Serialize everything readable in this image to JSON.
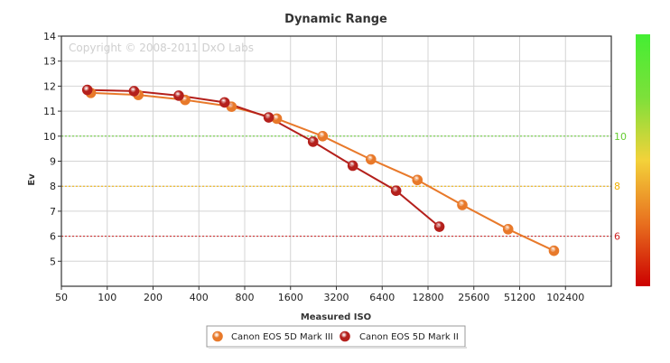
{
  "chart_data": {
    "type": "line",
    "title": "Dynamic Range",
    "xlabel": "Measured ISO",
    "ylabel": "Ev",
    "x_scale": "log2",
    "xlim": [
      50,
      204800
    ],
    "ylim": [
      4,
      14
    ],
    "x_ticks": [
      50,
      100,
      200,
      400,
      800,
      1600,
      3200,
      6400,
      12800,
      25600,
      51200,
      102400
    ],
    "y_ticks": [
      5,
      6,
      7,
      8,
      9,
      10,
      11,
      12,
      13,
      14
    ],
    "grid": true,
    "legend_position": "bottom",
    "watermark": "Copyright © 2008-2011 DxO Labs",
    "reference_lines": [
      {
        "value": 10,
        "label": "10",
        "color": "#66cc33"
      },
      {
        "value": 8,
        "label": "8",
        "color": "#f0b000"
      },
      {
        "value": 6,
        "label": "6",
        "color": "#cc2222"
      }
    ],
    "series": [
      {
        "name": "Canon EOS 5D Mark III",
        "color": "#e8792a",
        "points": [
          {
            "x": 78,
            "y": 11.73
          },
          {
            "x": 160,
            "y": 11.65
          },
          {
            "x": 325,
            "y": 11.45
          },
          {
            "x": 655,
            "y": 11.18
          },
          {
            "x": 1300,
            "y": 10.7
          },
          {
            "x": 2600,
            "y": 10.0
          },
          {
            "x": 5400,
            "y": 9.07
          },
          {
            "x": 10900,
            "y": 8.25
          },
          {
            "x": 21500,
            "y": 7.25
          },
          {
            "x": 43000,
            "y": 6.28
          },
          {
            "x": 86000,
            "y": 5.42
          }
        ]
      },
      {
        "name": "Canon EOS 5D Mark II",
        "color": "#b4201c",
        "points": [
          {
            "x": 74,
            "y": 11.85
          },
          {
            "x": 150,
            "y": 11.8
          },
          {
            "x": 295,
            "y": 11.62
          },
          {
            "x": 590,
            "y": 11.35
          },
          {
            "x": 1150,
            "y": 10.75
          },
          {
            "x": 2250,
            "y": 9.78
          },
          {
            "x": 4100,
            "y": 8.82
          },
          {
            "x": 7900,
            "y": 7.82
          },
          {
            "x": 15200,
            "y": 6.38
          }
        ]
      }
    ]
  }
}
